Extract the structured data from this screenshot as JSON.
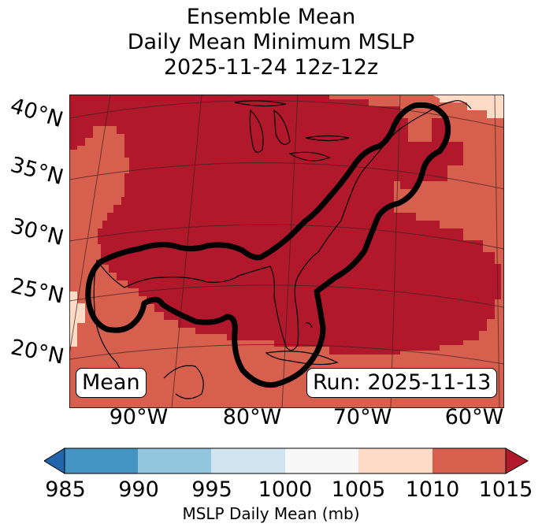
{
  "title": {
    "line1": "Ensemble Mean",
    "line2": "Daily Mean Minimum MSLP",
    "line3": "2025-11-24 12z-12z"
  },
  "map": {
    "lat_labels": [
      "40°N",
      "35°N",
      "30°N",
      "25°N",
      "20°N"
    ],
    "lon_labels": [
      "90°W",
      "80°W",
      "70°W",
      "60°W"
    ],
    "mean_box": "Mean",
    "run_box": "Run: 2025-11-13",
    "colors": {
      "c1010": "#d6604d",
      "c1015": "#b2182b",
      "c1005": "#fddbc7",
      "contour": "#000000",
      "coast": "#000000"
    }
  },
  "colorbar": {
    "label": "MSLP Daily Mean (mb)",
    "ticks": [
      "985",
      "990",
      "995",
      "1000",
      "1005",
      "1010",
      "1015"
    ],
    "colors": [
      "#2166ac",
      "#4393c3",
      "#92c5de",
      "#d1e5f0",
      "#f7f7f7",
      "#fddbc7",
      "#d6604d",
      "#b2182b"
    ]
  }
}
